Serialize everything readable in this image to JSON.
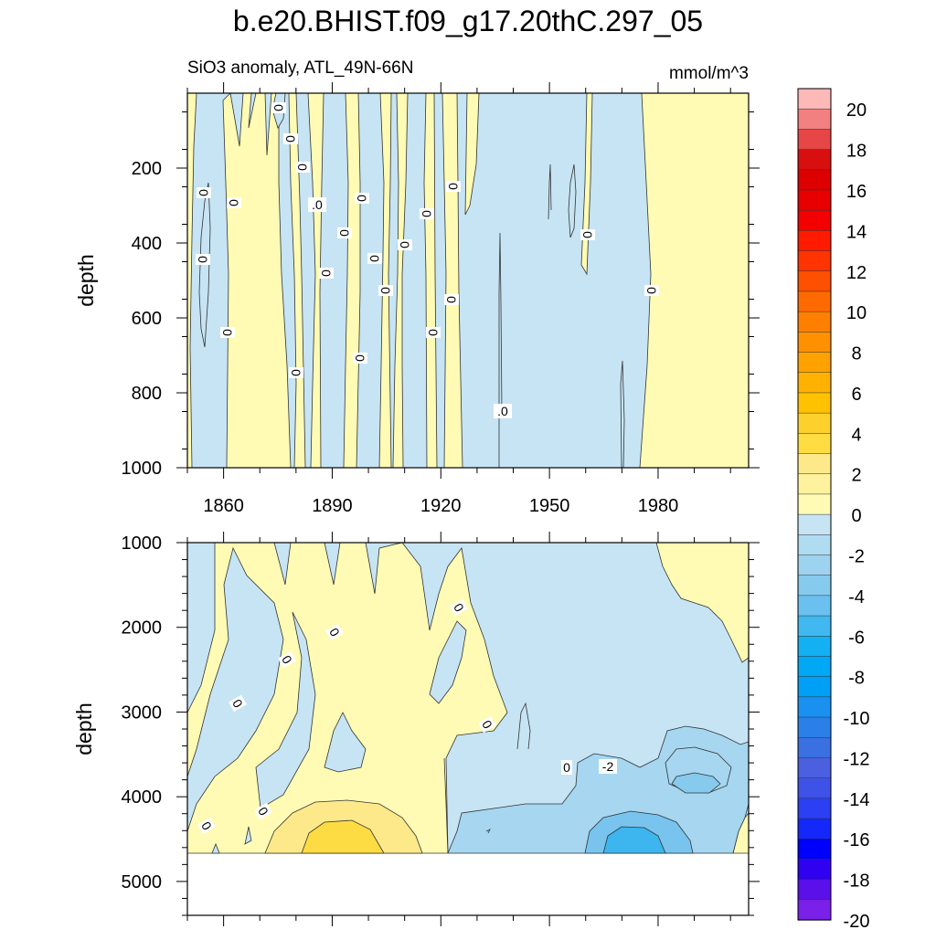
{
  "page": {
    "title": "b.e20.BHIST.f09_g17.20thC.297_05",
    "subtitle_left": "SiO3 anomaly, ATL_49N-66N",
    "subtitle_right": "mmol/m^3"
  },
  "chart_data": [
    {
      "type": "heatmap",
      "panel": "upper",
      "xlabel": "",
      "ylabel": "depth",
      "xlim": [
        1850,
        2005
      ],
      "ylim": [
        1000,
        0
      ],
      "x_ticks": [
        1860,
        1890,
        1920,
        1950,
        1980
      ],
      "y_ticks": [
        200,
        400,
        600,
        800,
        1000
      ],
      "shaded_ranges": [
        {
          "range": [
            0,
            2
          ],
          "color": "#fffbb4",
          "segments": [
            {
              "x": [
                1850,
                1852
              ],
              "y": [
                1000,
                0
              ]
            },
            {
              "x": [
                1860,
                1869
              ],
              "y": [
                1000,
                0
              ]
            },
            {
              "x": [
                1871,
                1879
              ],
              "y": [
                1000,
                0
              ]
            },
            {
              "x": [
                1883,
                1887
              ],
              "y": [
                1000,
                0
              ]
            },
            {
              "x": [
                1897,
                1901
              ],
              "y": [
                1000,
                0
              ]
            },
            {
              "x": [
                1904.5,
                1907
              ],
              "y": [
                1000,
                0
              ]
            },
            {
              "x": [
                1910,
                1913
              ],
              "y": [
                1000,
                0
              ]
            },
            {
              "x": [
                1919.5,
                1921.5
              ],
              "y": [
                1000,
                0
              ]
            },
            {
              "x": [
                1923,
                1926.5
              ],
              "y": [
                1000,
                0
              ]
            },
            {
              "x": [
                1929,
                1933
              ],
              "y": [
                300,
                0
              ]
            },
            {
              "x": [
                1960,
                1962
              ],
              "y": [
                380,
                80
              ]
            },
            {
              "x": [
                1980,
                2005
              ],
              "y": [
                1000,
                0
              ]
            }
          ]
        },
        {
          "range": [
            -2,
            0
          ],
          "color": "#c6e4f4",
          "note": "remaining area"
        }
      ],
      "contour_labels": [
        "0",
        "0",
        "0",
        "0",
        "0",
        "0",
        "0",
        "0",
        "0",
        "0",
        "0",
        "0",
        "0",
        "0",
        "0",
        "0",
        "0",
        "0",
        "0",
        "0",
        "0",
        ".0",
        ".0"
      ]
    },
    {
      "type": "heatmap",
      "panel": "lower",
      "xlabel": "",
      "ylabel": "depth",
      "xlim": [
        1850,
        2005
      ],
      "ylim": [
        5400,
        1000
      ],
      "y_ticks": [
        1000,
        2000,
        3000,
        4000,
        5000
      ],
      "no_data_below_depth": 4650,
      "shaded_ranges": [
        {
          "range": [
            0,
            2
          ],
          "color": "#fffbb4",
          "description": "1855-1925 from 1000 to 4650, 1980-2005 from 1000 to 2300"
        },
        {
          "range": [
            2,
            4
          ],
          "color": "#fde98a",
          "description": "around 1870-1900, 4200-4650"
        },
        {
          "range": [
            4,
            6
          ],
          "color": "#fcdc42",
          "description": "core near 1885-1895, 4500-4650"
        },
        {
          "range": [
            -2,
            0
          ],
          "color": "#c6e4f4",
          "description": "background"
        },
        {
          "range": [
            -4,
            -2
          ],
          "color": "#a6d6f0",
          "description": "1955-2005, 3500-4650"
        },
        {
          "range": [
            -6,
            -4
          ],
          "color": "#79c4ee",
          "description": "around 1965-1990, 4300-4650"
        },
        {
          "range": [
            -8,
            -6
          ],
          "color": "#3db5ee",
          "description": "core near 1970-1980, 4400-4650"
        }
      ],
      "contour_labels": [
        "0",
        "0",
        "0",
        "0",
        "0",
        "0",
        "0",
        "0",
        "-2"
      ]
    }
  ],
  "colorbar": {
    "levels": [
      "20",
      "18",
      "16",
      "14",
      "12",
      "10",
      "8",
      "6",
      "4",
      "2",
      "0",
      "-2",
      "-4",
      "-6",
      "-8",
      "-10",
      "-12",
      "-14",
      "-16",
      "-18",
      "-20"
    ],
    "colors_top_to_bottom": [
      "#fdb8b8",
      "#f28080",
      "#e64646",
      "#d70f0f",
      "#dc0000",
      "#e80000",
      "#f40000",
      "#ff1a00",
      "#ff3400",
      "#ff4f00",
      "#ff6a00",
      "#ff7f00",
      "#ff9000",
      "#ffa200",
      "#ffb200",
      "#ffc200",
      "#fed02c",
      "#fedc42",
      "#fde98a",
      "#fef29e",
      "#fffbb4",
      "#c6e4f4",
      "#b0dcf1",
      "#9ed3ef",
      "#86caee",
      "#6ac1ef",
      "#42b8f0",
      "#13b0f2",
      "#00a8f5",
      "#00a0f7",
      "#1a90f0",
      "#2a80e8",
      "#3a70e2",
      "#4a60de",
      "#3e52e8",
      "#2a40f2",
      "#1428fa",
      "#0000ff",
      "#3000f0",
      "#5a10e8",
      "#7a20e8"
    ]
  }
}
